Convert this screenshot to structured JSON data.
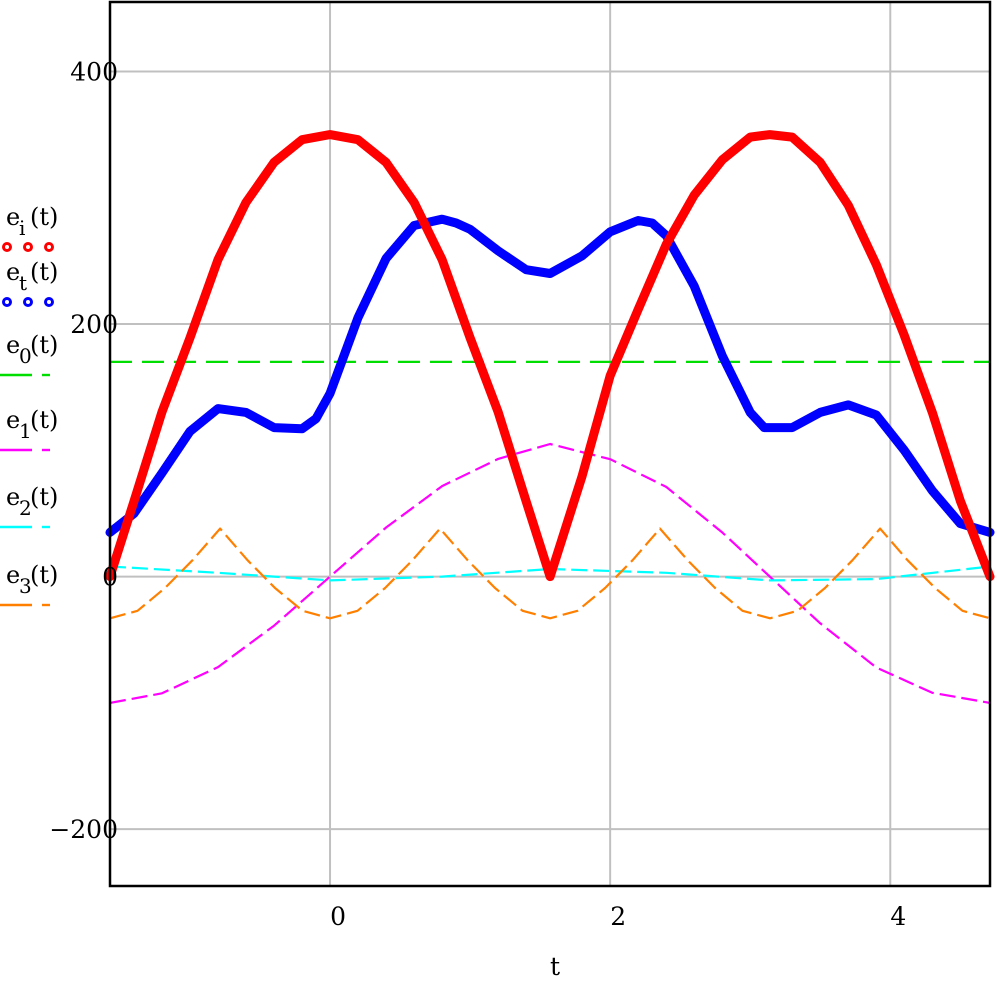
{
  "chart_data": {
    "type": "line",
    "xlabel": "t",
    "ylabel": "",
    "xlim": [
      -1.571,
      4.712
    ],
    "ylim": [
      -245,
      455
    ],
    "x_ticks": [
      0,
      2,
      4
    ],
    "y_ticks": [
      -200,
      0,
      200,
      400
    ],
    "x_tick_labels": [
      "0",
      "2",
      "4"
    ],
    "y_tick_labels": [
      "−200",
      "0",
      "200",
      "400"
    ],
    "grid": true,
    "legend_position": "left",
    "series": [
      {
        "name": "e_i(t)",
        "label_base": "e",
        "label_sub": "i",
        "label_arg": "(t)",
        "color": "#ff0000",
        "style": "dotted-thick",
        "x": [
          -1.571,
          -1.4,
          -1.2,
          -1.0,
          -0.8,
          -0.6,
          -0.4,
          -0.2,
          0.0,
          0.2,
          0.4,
          0.6,
          0.8,
          1.0,
          1.2,
          1.4,
          1.571,
          1.8,
          2.0,
          2.2,
          2.4,
          2.6,
          2.8,
          3.0,
          3.14,
          3.3,
          3.5,
          3.7,
          3.9,
          4.1,
          4.3,
          4.5,
          4.712
        ],
        "y": [
          0,
          59.7,
          130.4,
          189.1,
          251,
          296.3,
          328,
          346,
          350,
          346,
          328,
          296.3,
          251,
          189.1,
          130.4,
          59.7,
          0,
          79.6,
          159.2,
          211.6,
          263,
          302,
          330,
          348,
          350,
          348,
          328,
          294,
          247,
          191,
          130,
          60,
          0
        ]
      },
      {
        "name": "e_t(t)",
        "label_base": "e",
        "label_sub": "t",
        "label_arg": "(t)",
        "color": "#0000ff",
        "style": "dotted-thick",
        "x": [
          -1.571,
          -1.4,
          -1.2,
          -1.0,
          -0.8,
          -0.6,
          -0.4,
          -0.2,
          -0.1,
          0.0,
          0.2,
          0.4,
          0.6,
          0.8,
          0.9,
          1.0,
          1.2,
          1.4,
          1.571,
          1.8,
          2.0,
          2.2,
          2.3,
          2.4,
          2.6,
          2.8,
          3.0,
          3.1,
          3.3,
          3.5,
          3.7,
          3.9,
          4.1,
          4.3,
          4.5,
          4.712
        ],
        "y": [
          35,
          50,
          82,
          115,
          133,
          130,
          118,
          117,
          125,
          145,
          205,
          252,
          278,
          283,
          280,
          275,
          258,
          243,
          240,
          254,
          273,
          282,
          280,
          270,
          230,
          175,
          130,
          118,
          118,
          130,
          136,
          128,
          100,
          68,
          42,
          35
        ]
      },
      {
        "name": "e_0(t)",
        "label_base": "e",
        "label_sub": "0",
        "label_arg": "(t)",
        "color": "#00dd00",
        "style": "dashed",
        "x": [
          -1.571,
          4.712
        ],
        "y": [
          170,
          170
        ]
      },
      {
        "name": "e_1(t)",
        "label_base": "e",
        "label_sub": "1",
        "label_arg": "(t)",
        "color": "#ff00ff",
        "style": "dashed",
        "x": [
          -1.571,
          -1.2,
          -0.8,
          -0.4,
          0.0,
          0.4,
          0.8,
          1.2,
          1.571,
          2.0,
          2.4,
          2.8,
          3.14,
          3.5,
          3.9,
          4.3,
          4.712
        ],
        "y": [
          -100,
          -92.4,
          -71.7,
          -38.9,
          0,
          38.9,
          71.7,
          93.2,
          105,
          93,
          71,
          35,
          0,
          -37,
          -72,
          -92,
          -100
        ]
      },
      {
        "name": "e_2(t)",
        "label_base": "e",
        "label_sub": "2",
        "label_arg": "(t)",
        "color": "#00ffff",
        "style": "dashed",
        "x": [
          -1.571,
          -0.8,
          0.0,
          0.8,
          1.571,
          2.4,
          3.14,
          3.9,
          4.712
        ],
        "y": [
          8,
          3,
          -3,
          0,
          6,
          3,
          -3,
          -2,
          8
        ]
      },
      {
        "name": "e_3(t)",
        "label_base": "e",
        "label_sub": "3",
        "label_arg": "(t)",
        "color": "#ff8000",
        "style": "dashed",
        "x": [
          -1.571,
          -1.375,
          -1.178,
          -0.982,
          -0.785,
          -0.589,
          -0.393,
          -0.196,
          0.0,
          0.196,
          0.393,
          0.589,
          0.785,
          0.982,
          1.178,
          1.375,
          1.571,
          1.767,
          1.964,
          2.16,
          2.356,
          2.553,
          2.749,
          2.945,
          3.142,
          3.338,
          3.534,
          3.73,
          3.927,
          4.123,
          4.32,
          4.516,
          4.712
        ],
        "y": [
          -33,
          -27.1,
          -9,
          13,
          38,
          13,
          -9,
          -27.1,
          -33,
          -27.1,
          -9,
          13,
          38,
          13,
          -9,
          -27.1,
          -33,
          -27.1,
          -9,
          13,
          38,
          13,
          -9,
          -27.1,
          -33,
          -27.1,
          -9,
          13,
          38,
          13,
          -9,
          -27.1,
          -33
        ]
      }
    ]
  }
}
